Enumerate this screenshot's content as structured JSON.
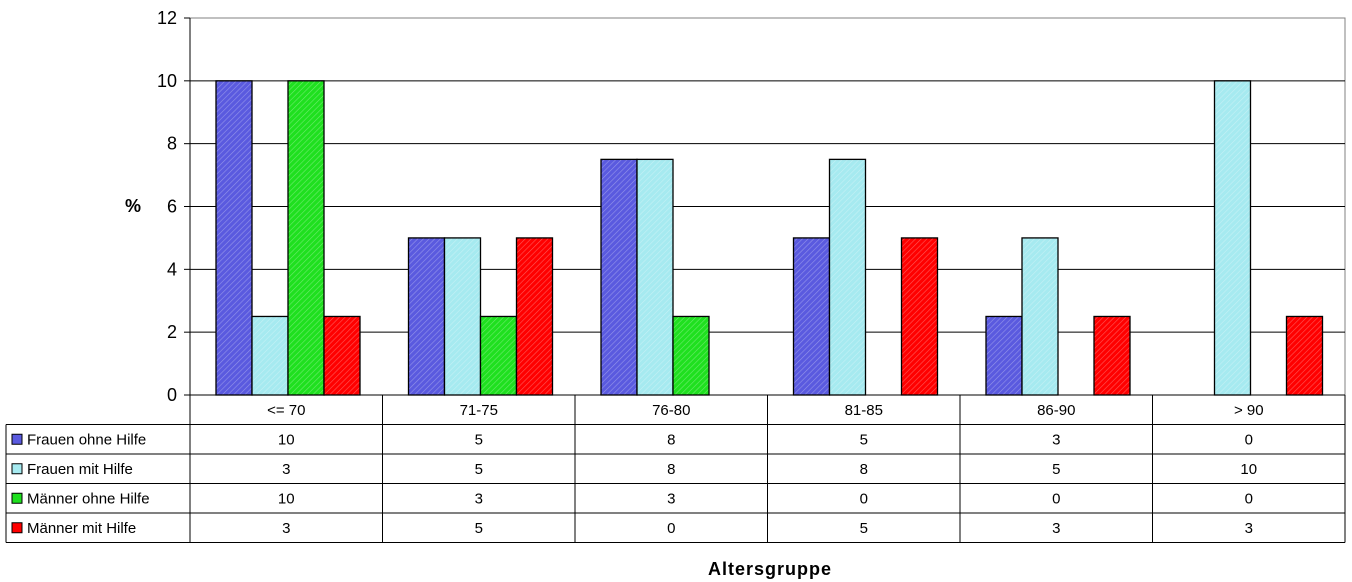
{
  "chart_data": {
    "type": "bar",
    "ylabel": "%",
    "xlabel": "Altersgruppe",
    "ylim": [
      0,
      12
    ],
    "yticks": [
      0,
      2,
      4,
      6,
      8,
      10,
      12
    ],
    "grid": true,
    "legend_placement": "data-table-left",
    "categories": [
      "<= 70",
      "71-75",
      "76-80",
      "81-85",
      "86-90",
      "> 90"
    ],
    "series": [
      {
        "name": "Frauen ohne Hilfe",
        "color": "#5a5adf",
        "values": [
          10,
          5,
          7.5,
          5,
          2.5,
          0
        ],
        "table": [
          "10",
          "5",
          "8",
          "5",
          "3",
          "0"
        ]
      },
      {
        "name": "Frauen mit Hilfe",
        "color": "#a6eaf0",
        "values": [
          2.5,
          5,
          7.5,
          7.5,
          5,
          10
        ],
        "table": [
          "3",
          "5",
          "8",
          "8",
          "5",
          "10"
        ]
      },
      {
        "name": "Männer ohne Hilfe",
        "color": "#1fe01f",
        "values": [
          10,
          2.5,
          2.5,
          0,
          0,
          0
        ],
        "table": [
          "10",
          "3",
          "3",
          "0",
          "0",
          "0"
        ]
      },
      {
        "name": "Männer mit Hilfe",
        "color": "#ff0000",
        "values": [
          2.5,
          5,
          0,
          5,
          2.5,
          2.5
        ],
        "table": [
          "3",
          "5",
          "0",
          "5",
          "3",
          "3"
        ]
      }
    ]
  }
}
